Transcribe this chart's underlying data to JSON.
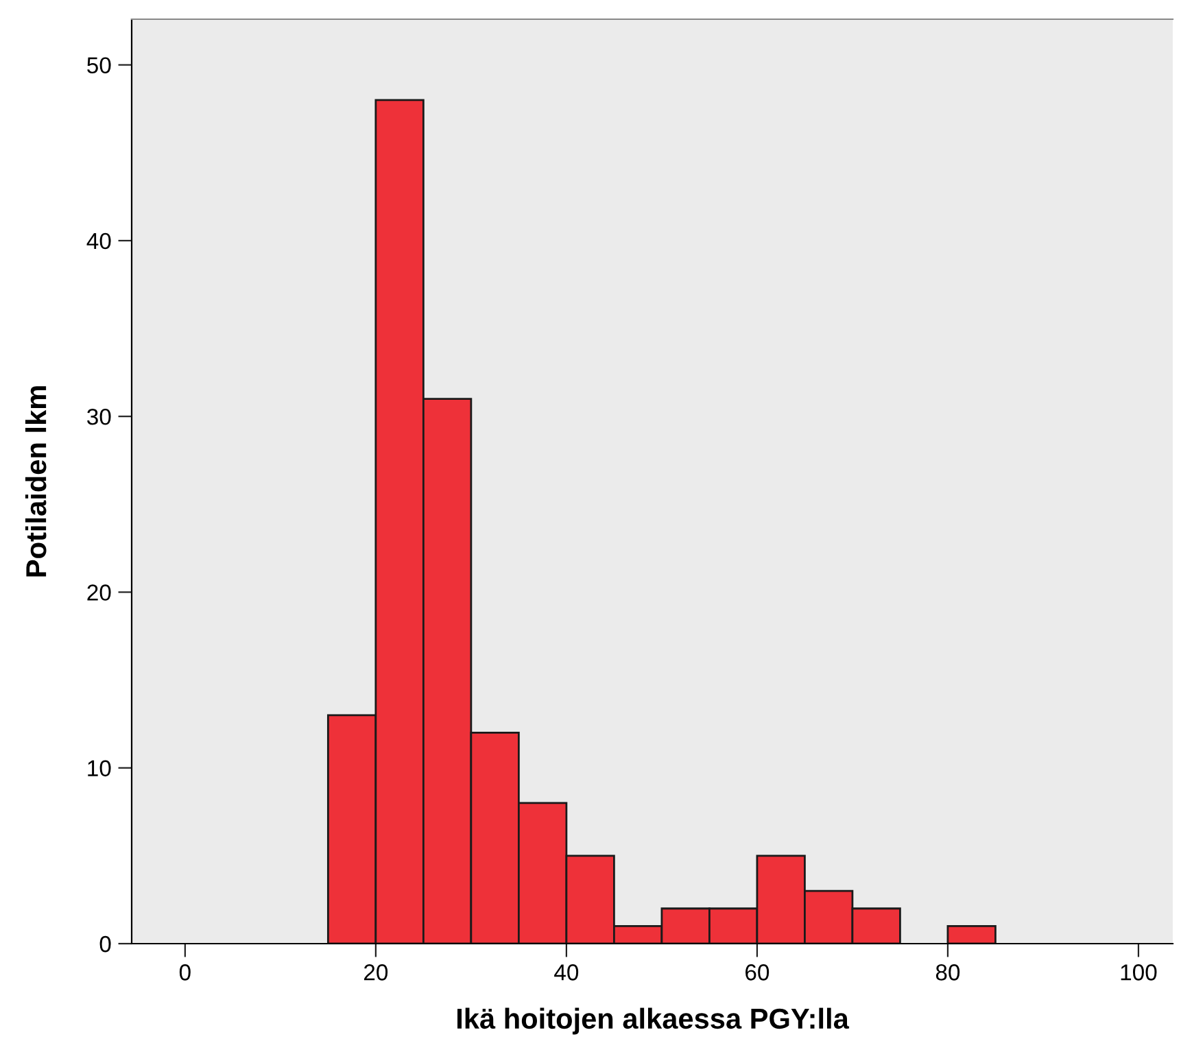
{
  "chart_data": {
    "type": "histogram",
    "xlabel": "Ikä hoitojen alkaessa PGY:lla",
    "ylabel": "Potilaiden lkm",
    "bins": [
      15,
      20,
      25,
      30,
      35,
      40,
      45,
      50,
      55,
      60,
      65,
      70,
      75,
      80,
      85
    ],
    "values": [
      13,
      48,
      31,
      12,
      8,
      5,
      1,
      2,
      2,
      5,
      3,
      2,
      0,
      1
    ],
    "color": "#ee3139",
    "xlim": [
      -5.6,
      103.6
    ],
    "xticks": [
      0,
      20,
      40,
      60,
      80,
      100
    ],
    "ylim": [
      0,
      52.6
    ],
    "yticks": [
      0,
      10,
      20,
      30,
      40,
      50
    ],
    "grid": false
  }
}
